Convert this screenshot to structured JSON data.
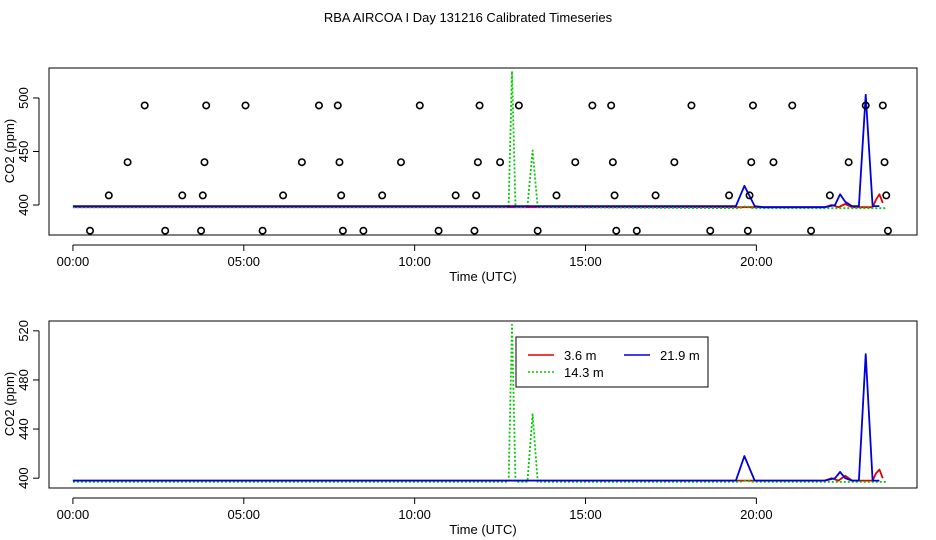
{
  "title": "RBA AIRCOA I  Day 131216  Calibrated Timeseries",
  "colors": {
    "red": "#e00000",
    "green": "#00cc00",
    "blue": "#0000dd",
    "axis": "#000000"
  },
  "chart_data": [
    {
      "type": "scatter",
      "panel": "top",
      "xlabel": "Time (UTC)",
      "ylabel": "CO2 (ppm)",
      "xlim": [
        -0.7,
        24.7
      ],
      "ylim": [
        372,
        528
      ],
      "x_ticks": [
        0,
        5,
        10,
        15,
        20
      ],
      "x_tick_labels": [
        "00:00",
        "05:00",
        "10:00",
        "15:00",
        "20:00"
      ],
      "y_ticks": [
        400,
        450,
        500
      ],
      "y_tick_labels": [
        "400",
        "450",
        "500"
      ],
      "grid": false,
      "points_series": {
        "name": "",
        "style": "open-circle",
        "x": [
          0.5,
          1.05,
          1.6,
          2.1,
          2.7,
          3.2,
          3.75,
          3.8,
          3.85,
          3.9,
          5.05,
          5.55,
          6.15,
          6.7,
          7.2,
          7.75,
          7.8,
          7.85,
          7.9,
          8.5,
          9.05,
          9.6,
          10.15,
          10.7,
          11.2,
          11.75,
          11.8,
          11.85,
          11.9,
          12.5,
          13.05,
          13.6,
          14.15,
          14.7,
          15.2,
          15.75,
          15.8,
          15.85,
          15.9,
          16.5,
          17.05,
          17.6,
          18.1,
          18.65,
          19.2,
          19.75,
          19.8,
          19.85,
          19.9,
          20.5,
          21.05,
          21.6,
          22.15,
          22.7,
          23.2,
          23.7,
          23.75,
          23.8,
          23.85
        ],
        "y": [
          376,
          409,
          440,
          493,
          376,
          409,
          376,
          409,
          440,
          493,
          493,
          376,
          409,
          440,
          493,
          493,
          440,
          409,
          376,
          376,
          409,
          440,
          493,
          376,
          409,
          376,
          409,
          440,
          493,
          440,
          493,
          376,
          409,
          440,
          493,
          493,
          440,
          409,
          376,
          376,
          409,
          440,
          493,
          376,
          409,
          376,
          409,
          440,
          493,
          440,
          493,
          376,
          409,
          440,
          493,
          493,
          440,
          409,
          376
        ]
      },
      "series": [
        {
          "name": "3.6 m",
          "color": "#e00000",
          "line_style": "solid",
          "x": [
            0,
            22.0,
            22.2,
            22.4,
            22.6,
            22.8,
            23.0,
            23.2,
            23.4,
            23.5,
            23.6,
            23.7
          ],
          "y": [
            398,
            398,
            400,
            398,
            401,
            398,
            398,
            398,
            398,
            405,
            410,
            402
          ]
        },
        {
          "name": "14.3 m",
          "color": "#00cc00",
          "line_style": "dotted",
          "x": [
            0,
            12.75,
            12.85,
            12.95,
            13.1,
            13.3,
            13.45,
            13.6,
            19.5,
            19.7,
            19.9,
            22.0,
            23.8
          ],
          "y": [
            398,
            398,
            525,
            398,
            398,
            398,
            451,
            398,
            397,
            399,
            397,
            397,
            397
          ]
        },
        {
          "name": "21.9 m",
          "color": "#0000dd",
          "line_style": "solid",
          "x": [
            0,
            19.4,
            19.65,
            19.95,
            20.2,
            22.0,
            22.3,
            22.45,
            22.6,
            22.8,
            23.0,
            23.2,
            23.4,
            23.6
          ],
          "y": [
            399,
            399,
            418,
            399,
            398,
            398,
            400,
            410,
            403,
            399,
            399,
            503,
            399,
            399
          ]
        }
      ]
    },
    {
      "type": "line",
      "panel": "bottom",
      "xlabel": "Time (UTC)",
      "ylabel": "CO2 (ppm)",
      "xlim": [
        -0.7,
        24.7
      ],
      "ylim": [
        392,
        528
      ],
      "x_ticks": [
        0,
        5,
        10,
        15,
        20
      ],
      "x_tick_labels": [
        "00:00",
        "05:00",
        "10:00",
        "15:00",
        "20:00"
      ],
      "y_ticks": [
        400,
        440,
        480,
        520
      ],
      "y_tick_labels": [
        "400",
        "440",
        "480",
        "520"
      ],
      "grid": false,
      "legend": {
        "placement": "top-center",
        "entries": [
          {
            "label": "3.6 m",
            "color": "#e00000",
            "line_style": "solid"
          },
          {
            "label": "14.3 m",
            "color": "#00cc00",
            "line_style": "dotted"
          },
          {
            "label": "21.9 m",
            "color": "#0000dd",
            "line_style": "solid"
          }
        ]
      },
      "series": [
        {
          "name": "3.6 m",
          "color": "#e00000",
          "line_style": "solid",
          "x": [
            0,
            22.0,
            22.2,
            22.4,
            22.6,
            22.8,
            23.0,
            23.2,
            23.4,
            23.5,
            23.6,
            23.7
          ],
          "y": [
            398,
            398,
            400,
            398,
            402,
            398,
            398,
            398,
            398,
            404,
            407,
            400
          ]
        },
        {
          "name": "14.3 m",
          "color": "#00cc00",
          "line_style": "dotted",
          "x": [
            0,
            12.75,
            12.85,
            12.95,
            13.1,
            13.3,
            13.45,
            13.6,
            19.5,
            19.7,
            19.9,
            22.0,
            23.8
          ],
          "y": [
            397,
            397,
            525,
            397,
            397,
            397,
            452,
            397,
            397,
            398,
            397,
            397,
            397
          ]
        },
        {
          "name": "21.9 m",
          "color": "#0000dd",
          "line_style": "solid",
          "x": [
            0,
            19.4,
            19.65,
            19.95,
            20.2,
            22.0,
            22.3,
            22.45,
            22.6,
            22.8,
            23.0,
            23.2,
            23.4,
            23.6
          ],
          "y": [
            398,
            398,
            418,
            398,
            398,
            398,
            400,
            405,
            400,
            398,
            398,
            501,
            398,
            398
          ]
        }
      ]
    }
  ]
}
